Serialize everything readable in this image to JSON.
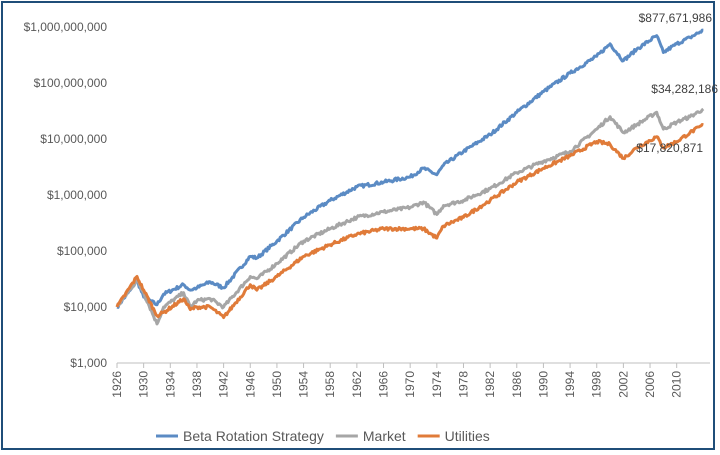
{
  "chart_data": {
    "type": "line",
    "title": "",
    "xlabel": "",
    "ylabel": "",
    "y_scale": "log",
    "ylim": [
      1000,
      1000000000
    ],
    "xlim": [
      1926,
      2015
    ],
    "y_ticks": [
      {
        "value": 1000,
        "label": "$1,000"
      },
      {
        "value": 10000,
        "label": "$10,000"
      },
      {
        "value": 100000,
        "label": "$100,000"
      },
      {
        "value": 1000000,
        "label": "$1,000,000"
      },
      {
        "value": 10000000,
        "label": "$10,000,000"
      },
      {
        "value": 100000000,
        "label": "$100,000,000"
      },
      {
        "value": 1000000000,
        "label": "$1,000,000,000"
      }
    ],
    "x_ticks": [
      "1926",
      "1930",
      "1934",
      "1938",
      "1942",
      "1946",
      "1950",
      "1954",
      "1958",
      "1962",
      "1966",
      "1970",
      "1974",
      "1978",
      "1982",
      "1986",
      "1990",
      "1994",
      "1998",
      "2002",
      "2006",
      "2010"
    ],
    "grid": false,
    "legend_position": "bottom",
    "series": [
      {
        "name": "Beta Rotation Strategy",
        "color": "#5b8bc4",
        "end_label": "$877,671,986",
        "x": [
          1926,
          1928,
          1929,
          1930,
          1932,
          1933,
          1936,
          1937,
          1938,
          1940,
          1942,
          1946,
          1947,
          1950,
          1954,
          1958,
          1962,
          1966,
          1970,
          1972,
          1974,
          1975,
          1978,
          1982,
          1986,
          1990,
          1994,
          1998,
          2000,
          2002,
          2004,
          2007,
          2008,
          2010,
          2012,
          2014
        ],
        "y": [
          10000,
          20000,
          30000,
          15000,
          11000,
          17000,
          25000,
          20000,
          22000,
          28000,
          22000,
          80000,
          75000,
          150000,
          400000,
          800000,
          1400000,
          1700000,
          2100000,
          3000000,
          2300000,
          3400000,
          6000000,
          12000000,
          30000000,
          70000000,
          150000000,
          300000000,
          500000000,
          250000000,
          400000000,
          700000000,
          350000000,
          500000000,
          650000000,
          877671986
        ]
      },
      {
        "name": "Market",
        "color": "#a6a6a6",
        "end_label": "$34,282,186",
        "x": [
          1926,
          1929,
          1930,
          1932,
          1933,
          1936,
          1937,
          1938,
          1940,
          1942,
          1946,
          1947,
          1950,
          1954,
          1958,
          1962,
          1966,
          1970,
          1972,
          1974,
          1975,
          1978,
          1982,
          1986,
          1990,
          1994,
          1998,
          2000,
          2002,
          2004,
          2007,
          2008,
          2010,
          2012,
          2014
        ],
        "y": [
          10000,
          30000,
          18000,
          5000,
          10000,
          18000,
          10000,
          13000,
          14000,
          10000,
          35000,
          32000,
          60000,
          150000,
          250000,
          400000,
          500000,
          600000,
          750000,
          450000,
          650000,
          800000,
          1300000,
          2500000,
          4000000,
          6000000,
          15000000,
          25000000,
          13000000,
          18000000,
          30000000,
          15000000,
          20000000,
          25000000,
          34282186
        ]
      },
      {
        "name": "Utilities",
        "color": "#e07b39",
        "end_label": "$17,820,871",
        "x": [
          1926,
          1929,
          1930,
          1932,
          1933,
          1936,
          1937,
          1938,
          1940,
          1942,
          1946,
          1947,
          1950,
          1954,
          1958,
          1962,
          1966,
          1970,
          1972,
          1974,
          1975,
          1978,
          1982,
          1986,
          1990,
          1994,
          1998,
          2000,
          2002,
          2004,
          2007,
          2008,
          2010,
          2012,
          2014
        ],
        "y": [
          10000,
          35000,
          20000,
          7000,
          8000,
          14000,
          9000,
          10000,
          10000,
          6500,
          25000,
          20000,
          35000,
          80000,
          130000,
          200000,
          250000,
          250000,
          250000,
          170000,
          280000,
          400000,
          800000,
          1700000,
          3000000,
          5000000,
          9000000,
          8000000,
          4500000,
          7000000,
          11000000,
          7000000,
          9000000,
          13000000,
          17820871
        ]
      }
    ]
  }
}
